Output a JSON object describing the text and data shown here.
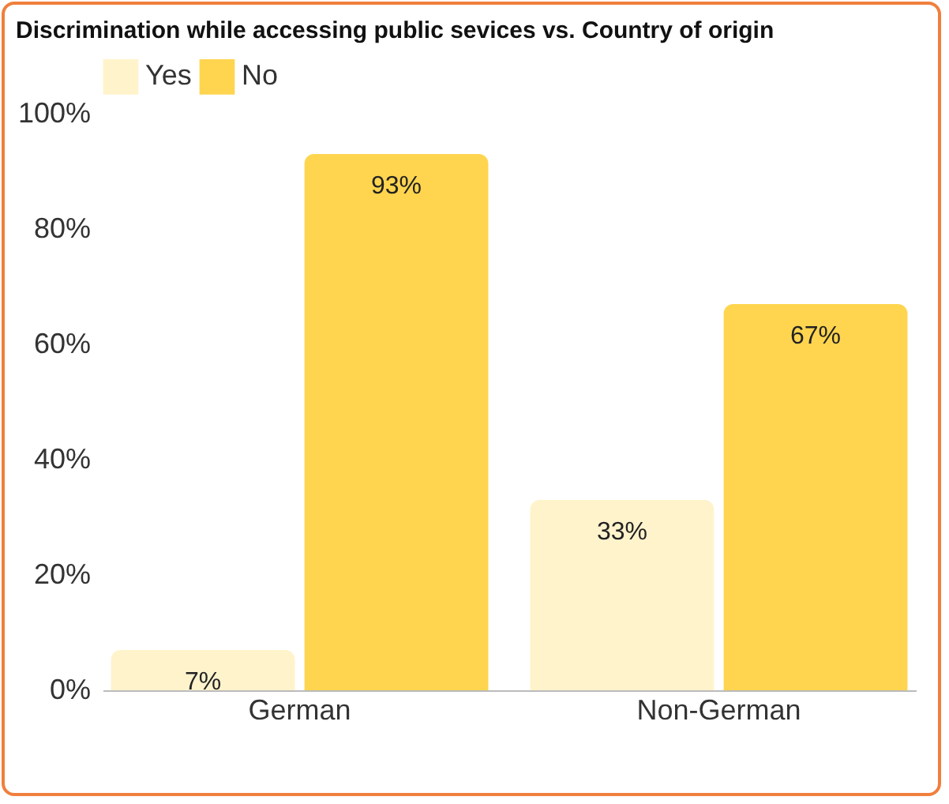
{
  "chart_data": {
    "type": "bar",
    "title": "Discrimination while accessing public sevices vs. Country of origin",
    "categories": [
      "German",
      "Non-German"
    ],
    "series": [
      {
        "name": "Yes",
        "color": "#fff3cc",
        "values": [
          7,
          33
        ],
        "value_labels": [
          "7%",
          "33%"
        ]
      },
      {
        "name": "No",
        "color": "#ffd54f",
        "values": [
          93,
          67
        ],
        "value_labels": [
          "93%",
          "67%"
        ]
      }
    ],
    "ylim": [
      0,
      100
    ],
    "yticks": [
      {
        "value": 0,
        "label": "0%"
      },
      {
        "value": 20,
        "label": "20%"
      },
      {
        "value": 40,
        "label": "40%"
      },
      {
        "value": 60,
        "label": "60%"
      },
      {
        "value": 80,
        "label": "80%"
      },
      {
        "value": 100,
        "label": "100%"
      }
    ],
    "grid": false,
    "legend": "top"
  }
}
